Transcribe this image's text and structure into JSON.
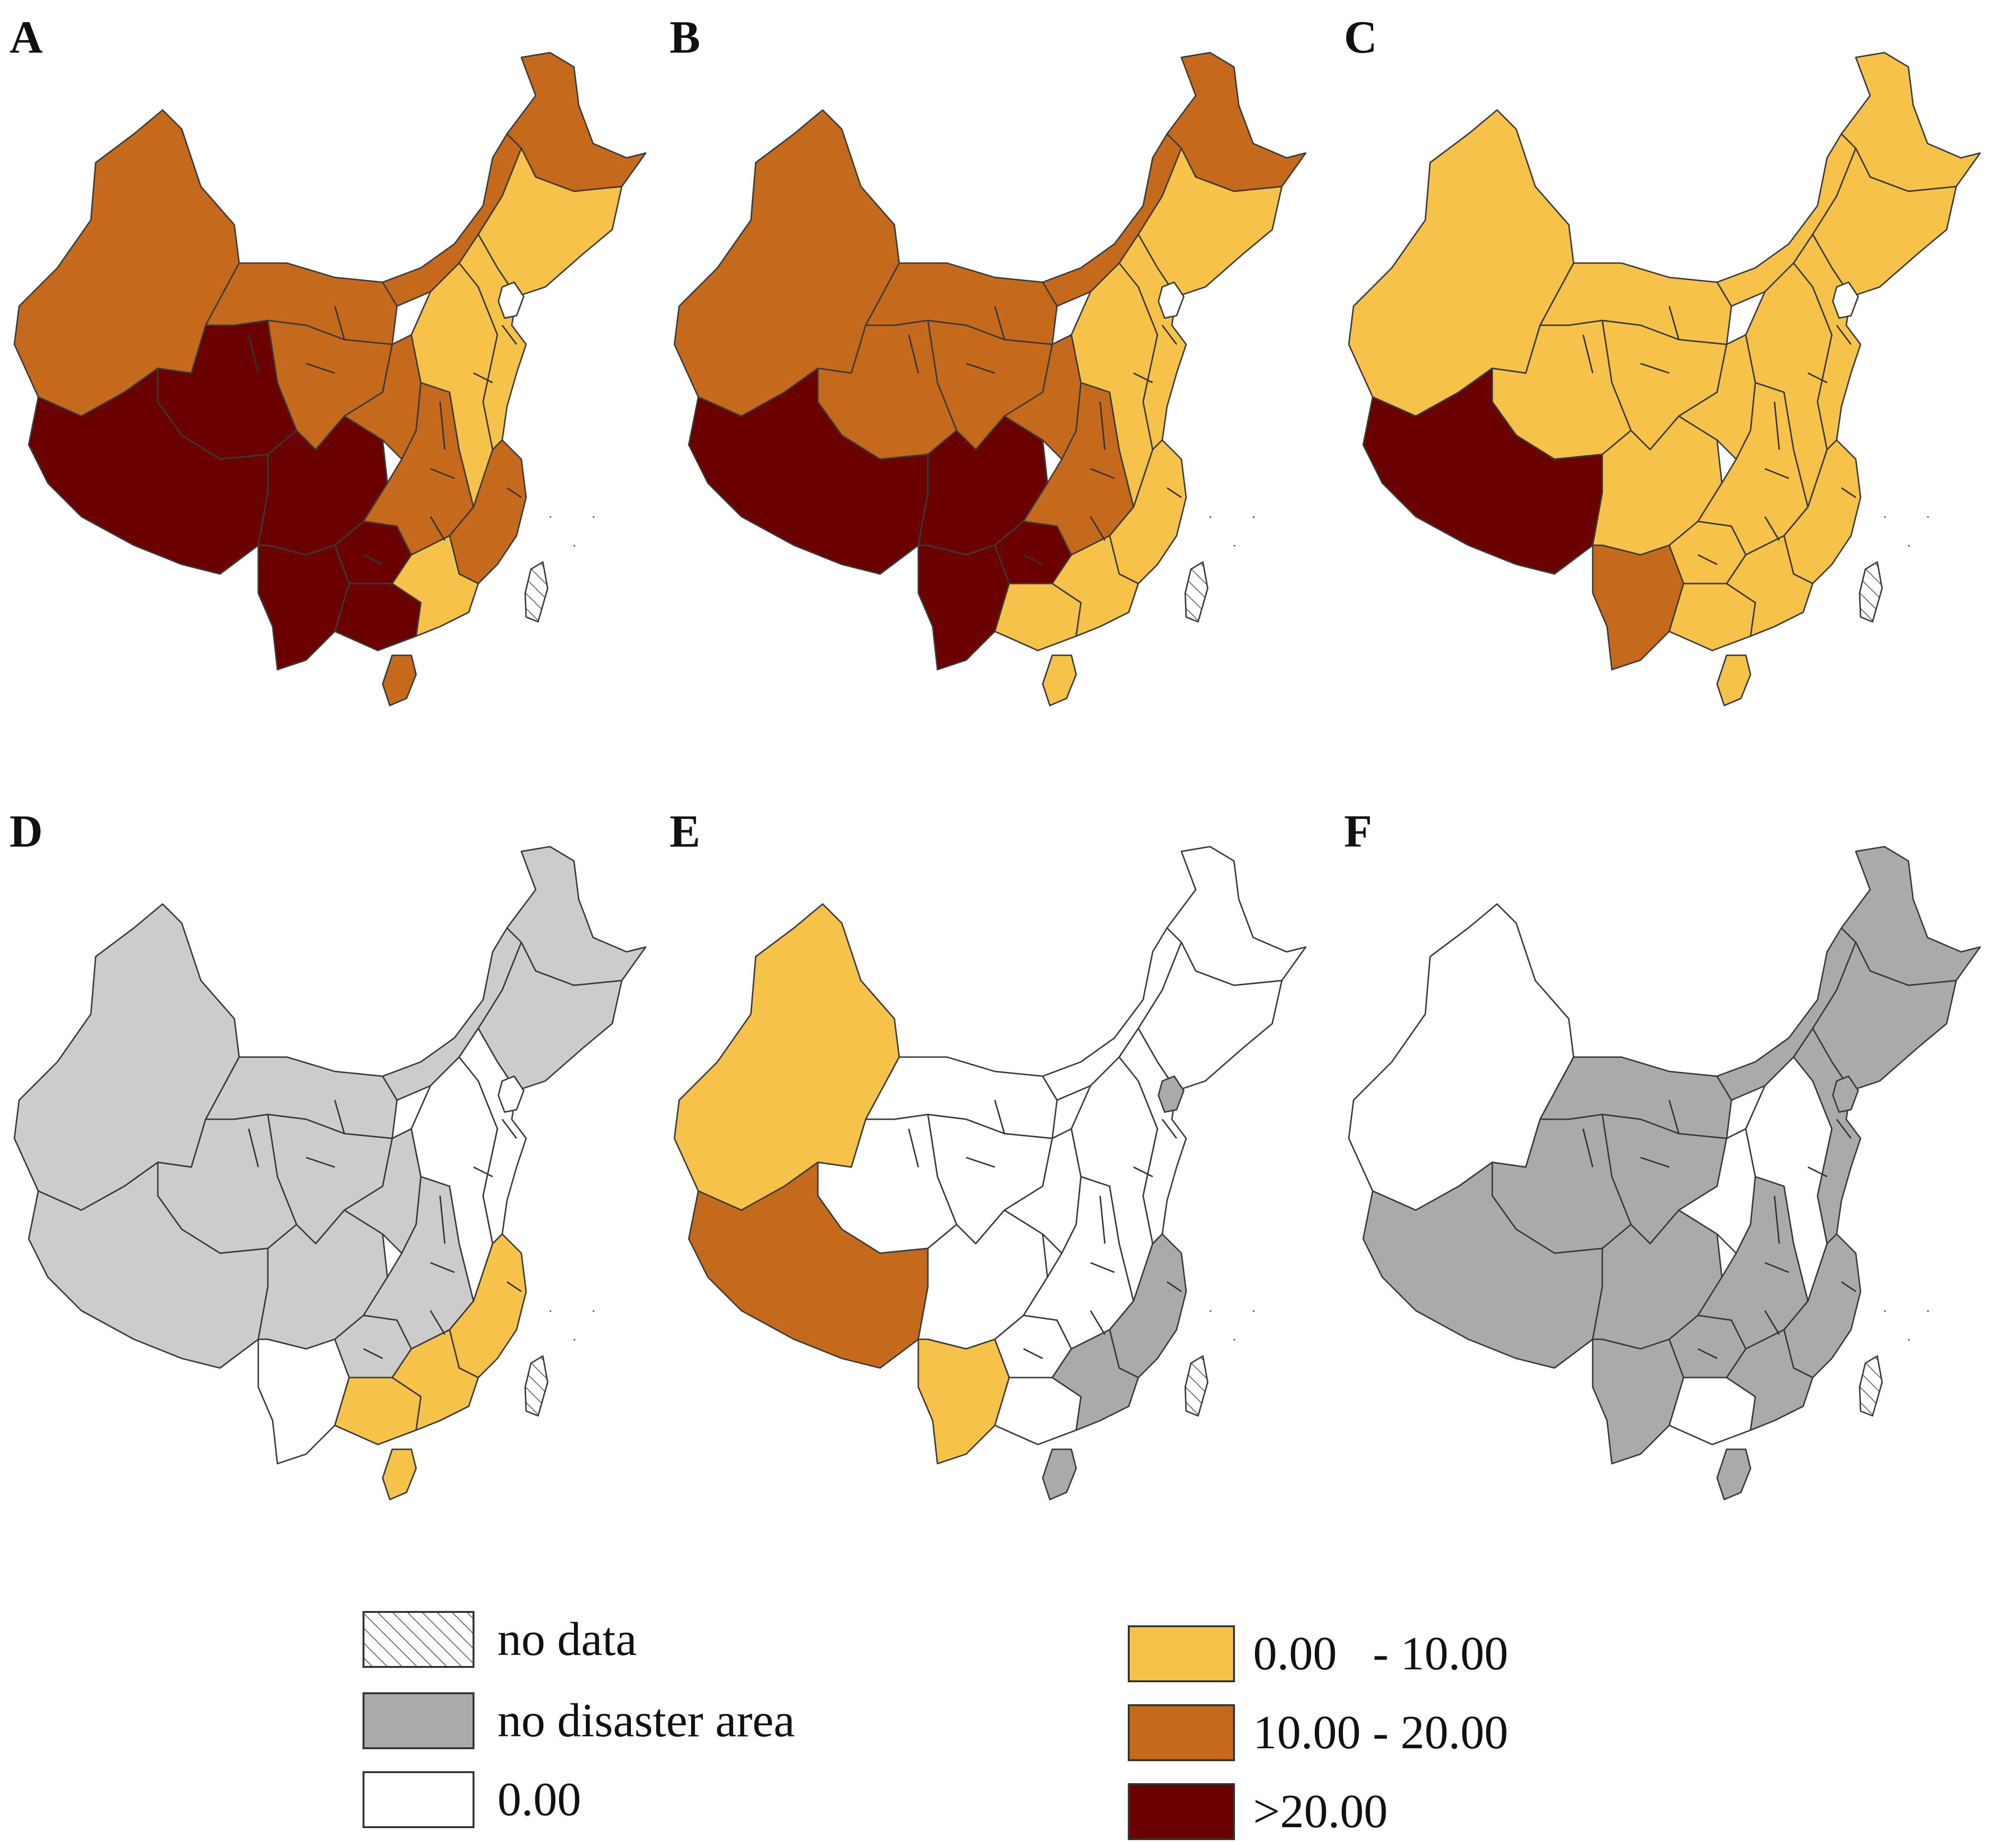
{
  "colors": {
    "no_data": "hatch",
    "no_disaster": "#aaaaaa",
    "zero": "#ffffff",
    "low": "#f6c24a",
    "mid": "#c56a1d",
    "high": "#6a0000",
    "no_disaster_light": "#cccccc"
  },
  "panels": [
    {
      "label": "A",
      "regions": {
        "xinjiang": "mid",
        "inner_mongolia_west": "mid",
        "inner_mongolia_mid": "mid",
        "heilongjiang": "mid",
        "northeast": "low",
        "tibet": "high",
        "qinghai": "high",
        "sichuan": "high",
        "yunnan": "high",
        "guizhou": "high",
        "gansu": "mid",
        "shaanxi": "mid",
        "central_west": "mid",
        "central_east": "low",
        "coast_north": "low",
        "coast_south": "mid",
        "guangdong": "low",
        "guangxi": "high",
        "hainan": "mid",
        "beijing": "zero"
      }
    },
    {
      "label": "B",
      "regions": {
        "xinjiang": "mid",
        "inner_mongolia_west": "mid",
        "inner_mongolia_mid": "mid",
        "heilongjiang": "mid",
        "northeast": "low",
        "tibet": "high",
        "qinghai": "mid",
        "sichuan": "high",
        "yunnan": "high",
        "guizhou": "high",
        "gansu": "mid",
        "shaanxi": "mid",
        "central_west": "mid",
        "central_east": "low",
        "coast_north": "low",
        "coast_south": "low",
        "guangdong": "low",
        "guangxi": "low",
        "hainan": "low",
        "beijing": "zero"
      }
    },
    {
      "label": "C",
      "regions": {
        "xinjiang": "low",
        "inner_mongolia_west": "low",
        "inner_mongolia_mid": "low",
        "heilongjiang": "low",
        "northeast": "low",
        "tibet": "high",
        "qinghai": "low",
        "sichuan": "low",
        "yunnan": "mid",
        "guizhou": "low",
        "gansu": "low",
        "shaanxi": "low",
        "central_west": "low",
        "central_east": "low",
        "coast_north": "low",
        "coast_south": "low",
        "guangdong": "low",
        "guangxi": "low",
        "hainan": "low",
        "beijing": "zero"
      }
    },
    {
      "label": "D",
      "regions": {
        "xinjiang": "no_disaster_light",
        "inner_mongolia_west": "no_disaster_light",
        "inner_mongolia_mid": "no_disaster_light",
        "heilongjiang": "no_disaster_light",
        "northeast": "no_disaster_light",
        "tibet": "no_disaster_light",
        "qinghai": "no_disaster_light",
        "sichuan": "no_disaster_light",
        "yunnan": "zero",
        "guizhou": "no_disaster_light",
        "gansu": "no_disaster_light",
        "shaanxi": "no_disaster_light",
        "central_west": "no_disaster_light",
        "central_east": "zero",
        "coast_north": "zero",
        "coast_south": "low",
        "guangdong": "low",
        "guangxi": "low",
        "hainan": "low",
        "beijing": "zero"
      }
    },
    {
      "label": "E",
      "regions": {
        "xinjiang": "low",
        "inner_mongolia_west": "zero",
        "inner_mongolia_mid": "zero",
        "heilongjiang": "zero",
        "northeast": "zero",
        "tibet": "mid",
        "qinghai": "zero",
        "sichuan": "zero",
        "yunnan": "low",
        "guizhou": "zero",
        "gansu": "zero",
        "shaanxi": "zero",
        "central_west": "zero",
        "central_east": "zero",
        "coast_north": "zero",
        "coast_south": "no_disaster",
        "guangdong": "no_disaster",
        "guangxi": "zero",
        "hainan": "no_disaster",
        "beijing": "no_disaster"
      }
    },
    {
      "label": "F",
      "regions": {
        "xinjiang": "zero",
        "inner_mongolia_west": "no_disaster",
        "inner_mongolia_mid": "no_disaster",
        "heilongjiang": "no_disaster",
        "northeast": "no_disaster",
        "tibet": "no_disaster",
        "qinghai": "no_disaster",
        "sichuan": "no_disaster",
        "yunnan": "no_disaster",
        "guizhou": "no_disaster",
        "gansu": "no_disaster",
        "shaanxi": "zero",
        "central_west": "no_disaster",
        "central_east": "zero",
        "coast_north": "no_disaster",
        "coast_south": "no_disaster",
        "guangdong": "no_disaster",
        "guangxi": "zero",
        "hainan": "no_disaster",
        "beijing": "no_disaster"
      }
    }
  ],
  "legend_left": [
    {
      "key": "no_data",
      "label": "no data"
    },
    {
      "key": "no_disaster",
      "label": "no disaster area"
    },
    {
      "key": "zero",
      "label": "0.00"
    }
  ],
  "legend_right": [
    {
      "key": "low",
      "label": "0.00   - 10.00"
    },
    {
      "key": "mid",
      "label": "10.00 - 20.00"
    },
    {
      "key": "high",
      "label": ">20.00"
    }
  ]
}
